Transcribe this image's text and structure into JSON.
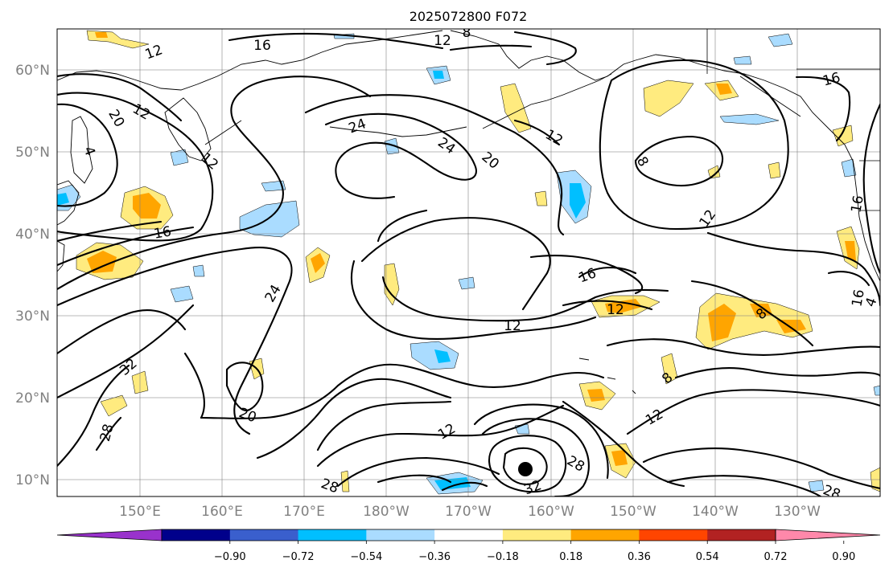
{
  "map": {
    "title": "2025072800 F072",
    "lat_labels": [
      "60°N",
      "50°N",
      "40°N",
      "30°N",
      "20°N",
      "10°N"
    ],
    "lon_labels": [
      "150°E",
      "160°E",
      "170°E",
      "180°W",
      "170°W",
      "160°W",
      "150°W",
      "140°W",
      "130°W"
    ],
    "contour_labels": [
      "12",
      "8",
      "12",
      "16",
      "12",
      "20",
      "4",
      "12",
      "24",
      "24",
      "20",
      "12",
      "8",
      "16",
      "16",
      "16",
      "12",
      "24",
      "16",
      "12",
      "32",
      "28",
      "20",
      "12",
      "28",
      "32",
      "28",
      "12",
      "8",
      "8",
      "12",
      "16",
      "4",
      "28"
    ],
    "storm_marker": "filled-circle"
  },
  "colorbar": {
    "colors": [
      "#9932cc",
      "#00008b",
      "#3a5fcd",
      "#00bfff",
      "#aadcff",
      "#ffffff",
      "#ffeb7f",
      "#ffa500",
      "#ff4500",
      "#b22222",
      "#ff88aa"
    ],
    "tick_labels": [
      "−0.90",
      "−0.72",
      "−0.54",
      "−0.36",
      "−0.18",
      "0.18",
      "0.36",
      "0.54",
      "0.72",
      "0.90"
    ]
  }
}
